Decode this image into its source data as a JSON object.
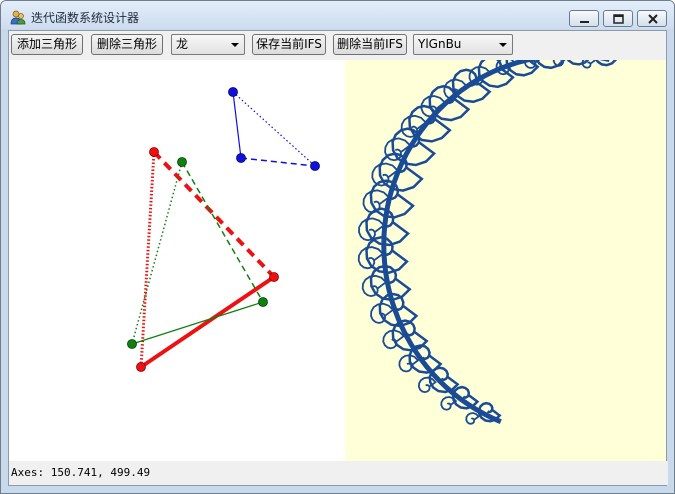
{
  "window": {
    "title": "迭代函数系统设计器"
  },
  "toolbar": {
    "add_triangle_label": "添加三角形",
    "delete_triangle_label": "删除三角形",
    "preset_select_value": "龙",
    "save_ifs_label": "保存当前IFS",
    "delete_ifs_label": "删除当前IFS",
    "colormap_select_value": "YlGnBu"
  },
  "status": {
    "text": "Axes: 150.741, 499.49"
  },
  "colors": {
    "fractal_background": "#ffffd8",
    "fractal_color": "#1a4b96",
    "triangle_red": "#ee1111",
    "triangle_green": "#108010",
    "triangle_blue": "#1010dd"
  },
  "icons": {
    "app": "users-icon",
    "minimize": "minimize-icon",
    "maximize": "maximize-icon",
    "close": "close-icon"
  }
}
